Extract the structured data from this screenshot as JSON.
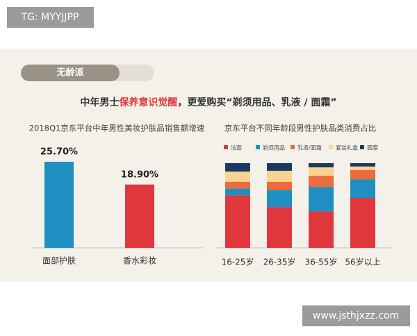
{
  "overlays": {
    "tg_label": "TG: MYYJJPP",
    "watermark": "www.jsthjxzz.com"
  },
  "tag": "无龄派",
  "headline": {
    "parts": [
      "中年男士",
      "保养意识觉醒",
      "，更爱购买“剃须用品、乳液 / 面霜”"
    ],
    "highlight_color": "#e03a3c"
  },
  "chart_data": [
    {
      "type": "bar",
      "title": "2018Q1京东平台中年男性美妆护肤品销售额增速",
      "categories": [
        "面部护肤",
        "香水彩妆"
      ],
      "values": [
        25.7,
        18.9
      ],
      "value_labels": [
        "25.70%",
        "18.90%"
      ],
      "colors": [
        "#1f8fc2",
        "#e0373d"
      ]
    },
    {
      "type": "stacked_bar",
      "title": "京东平台不同年龄段男性护肤品类消费占比",
      "categories": [
        "16-25岁",
        "26-35岁",
        "36-55岁",
        "56岁以上"
      ],
      "ylim": [
        0,
        100
      ],
      "series": [
        {
          "name": "洁面",
          "color": "#e0373d",
          "values": [
            62,
            48,
            43,
            59
          ]
        },
        {
          "name": "剃须用品",
          "color": "#1f8fc2",
          "values": [
            8,
            20,
            29,
            22
          ]
        },
        {
          "name": "乳液/面霜",
          "color": "#ec6a3c",
          "values": [
            8,
            10,
            13,
            11
          ]
        },
        {
          "name": "套装礼盒",
          "color": "#f8d48e",
          "values": [
            12,
            13,
            10,
            4
          ]
        },
        {
          "name": "面膜",
          "color": "#1b3a63",
          "values": [
            10,
            9,
            5,
            4
          ]
        }
      ]
    }
  ]
}
